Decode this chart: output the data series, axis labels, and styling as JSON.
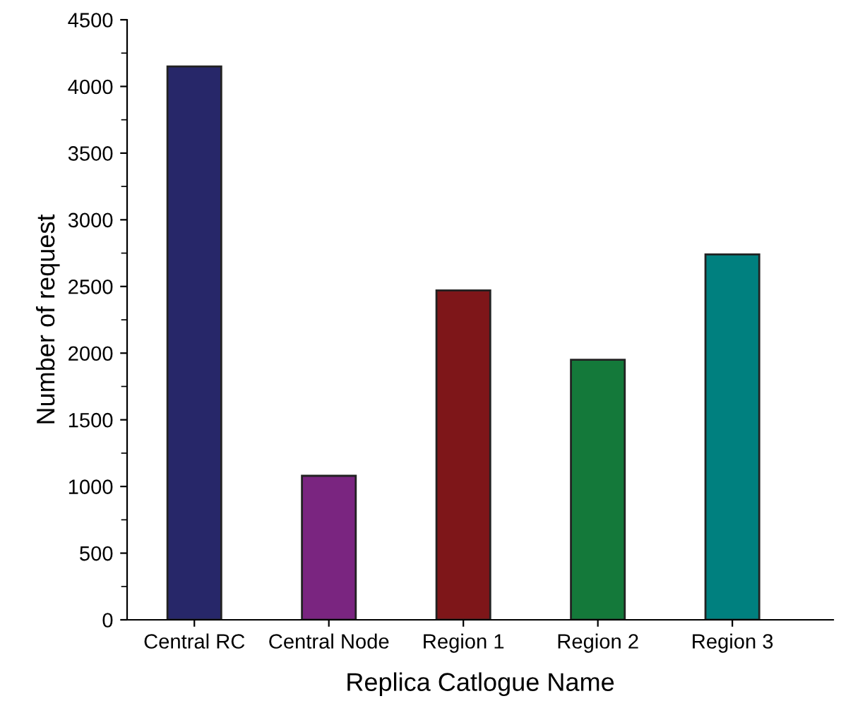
{
  "chart_data": {
    "type": "bar",
    "xlabel": "Replica Catlogue Name",
    "ylabel": "Number of request",
    "categories": [
      "Central RC",
      "Central Node",
      "Region 1",
      "Region 2",
      "Region 3"
    ],
    "values": [
      4150,
      1080,
      2470,
      1950,
      2740
    ],
    "colors": [
      "#272769",
      "#7a2580",
      "#7e1619",
      "#14793a",
      "#00807f"
    ],
    "ylim": [
      0,
      4500
    ],
    "yticks": [
      0,
      500,
      1000,
      1500,
      2000,
      2500,
      3000,
      3500,
      4000,
      4500
    ],
    "grid": false,
    "legend": false
  }
}
